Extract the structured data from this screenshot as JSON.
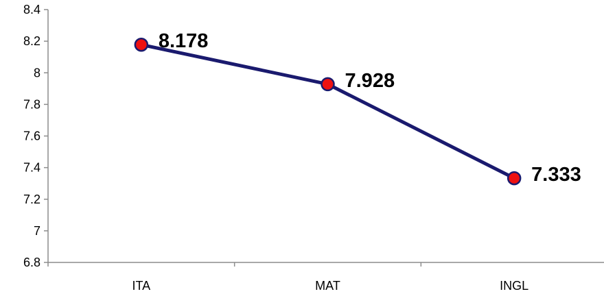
{
  "chart_data": {
    "type": "line",
    "categories": [
      "ITA",
      "MAT",
      "INGL"
    ],
    "series": [
      {
        "values": [
          8.178,
          7.928,
          7.333
        ]
      }
    ],
    "data_labels": [
      "8.178",
      "7.928",
      "7.333"
    ],
    "y_ticks": [
      "6.8",
      "7",
      "7.2",
      "7.4",
      "7.6",
      "7.8",
      "8",
      "8.2",
      "8.4"
    ],
    "ylim": [
      6.8,
      8.4
    ],
    "y_step": 0.2,
    "grid": false,
    "legend": "none",
    "line_color": "#1a1a6e",
    "marker_fill": "#ee1111",
    "marker_stroke": "#1a1a6e",
    "axis_color": "#8c8c8c"
  }
}
